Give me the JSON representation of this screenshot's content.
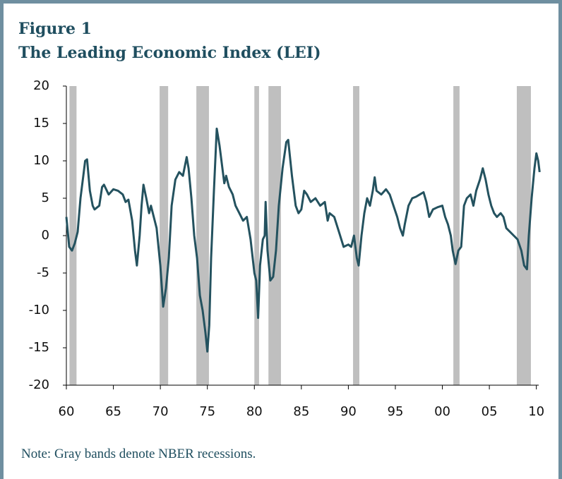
{
  "chart_data": {
    "type": "line",
    "title": "Figure 1",
    "subtitle": "The Leading Economic Index (LEI)",
    "note": "Note: Gray bands denote NBER recessions.",
    "x": [
      1960.0,
      1960.3,
      1960.6,
      1960.9,
      1961.2,
      1961.5,
      1961.8,
      1962.0,
      1962.2,
      1962.5,
      1962.8,
      1963.0,
      1963.5,
      1963.8,
      1964.0,
      1964.5,
      1965.0,
      1965.5,
      1966.0,
      1966.3,
      1966.6,
      1967.0,
      1967.3,
      1967.5,
      1967.8,
      1968.0,
      1968.2,
      1968.5,
      1968.8,
      1969.0,
      1969.3,
      1969.6,
      1970.0,
      1970.3,
      1970.6,
      1970.9,
      1971.2,
      1971.6,
      1972.0,
      1972.4,
      1972.8,
      1973.0,
      1973.3,
      1973.6,
      1973.9,
      1974.2,
      1974.5,
      1974.8,
      1975.0,
      1975.2,
      1975.4,
      1975.7,
      1976.0,
      1976.3,
      1976.6,
      1976.8,
      1977.0,
      1977.3,
      1977.7,
      1978.0,
      1978.4,
      1978.8,
      1979.2,
      1979.6,
      1980.0,
      1980.2,
      1980.4,
      1980.6,
      1980.9,
      1981.1,
      1981.2,
      1981.4,
      1981.7,
      1982.0,
      1982.3,
      1982.6,
      1983.0,
      1983.4,
      1983.6,
      1984.0,
      1984.4,
      1984.7,
      1985.0,
      1985.3,
      1985.6,
      1986.0,
      1986.5,
      1987.0,
      1987.5,
      1987.8,
      1988.0,
      1988.5,
      1989.0,
      1989.5,
      1990.0,
      1990.3,
      1990.6,
      1990.9,
      1991.1,
      1991.4,
      1991.7,
      1992.0,
      1992.3,
      1992.6,
      1992.8,
      1993.0,
      1993.5,
      1994.0,
      1994.4,
      1994.8,
      1995.2,
      1995.5,
      1995.8,
      1996.0,
      1996.4,
      1996.8,
      1997.2,
      1997.6,
      1998.0,
      1998.3,
      1998.6,
      1999.0,
      1999.5,
      2000.0,
      2000.3,
      2000.6,
      2000.9,
      2001.1,
      2001.4,
      2001.7,
      2002.0,
      2002.3,
      2002.6,
      2003.0,
      2003.3,
      2003.6,
      2004.0,
      2004.3,
      2004.6,
      2004.9,
      2005.2,
      2005.5,
      2005.8,
      2006.2,
      2006.5,
      2006.8,
      2007.2,
      2007.6,
      2008.0,
      2008.4,
      2008.7,
      2009.0,
      2009.2,
      2009.5,
      2009.8,
      2010.0,
      2010.2,
      2010.35
    ],
    "series": [
      {
        "color": "#24525f",
        "values": [
          2.5,
          -1.5,
          -2,
          -1,
          0.5,
          5,
          8,
          10,
          10.2,
          6,
          4,
          3.5,
          4,
          6.5,
          6.8,
          5.5,
          6.2,
          6,
          5.5,
          4.5,
          4.8,
          2,
          -2,
          -4,
          0,
          4,
          6.8,
          5,
          3,
          4,
          2.5,
          1,
          -4,
          -9.5,
          -7,
          -3,
          4,
          7.5,
          8.5,
          8,
          10.5,
          9,
          5,
          0,
          -3,
          -8,
          -10,
          -13,
          -15.5,
          -12,
          -3,
          6,
          14.3,
          12,
          9,
          7,
          8,
          6.5,
          5.5,
          4,
          3,
          2,
          2.5,
          -0.5,
          -5,
          -6,
          -11,
          -4,
          -0.5,
          0,
          4.5,
          -2,
          -6,
          -5.5,
          -2,
          4,
          9,
          12.5,
          12.8,
          8,
          4,
          3,
          3.5,
          6,
          5.5,
          4.5,
          5,
          4,
          4.5,
          2,
          3,
          2.5,
          0.5,
          -1.5,
          -1.2,
          -1.5,
          0,
          -3,
          -4,
          0,
          3,
          5,
          4,
          6,
          7.8,
          6,
          5.5,
          6.2,
          5.5,
          4,
          2.5,
          1,
          0,
          1.5,
          4,
          5,
          5.2,
          5.5,
          5.8,
          4.5,
          2.5,
          3.5,
          3.8,
          4,
          2.5,
          1.5,
          0,
          -2,
          -3.8,
          -2,
          -1.5,
          4,
          5,
          5.5,
          4,
          6,
          7.5,
          9,
          7.5,
          5.5,
          4,
          3,
          2.5,
          3,
          2.5,
          1,
          0.5,
          0,
          -0.5,
          -2,
          -4,
          -4.5,
          0,
          5,
          9,
          11,
          10,
          8.5
        ]
      }
    ],
    "recessions": [
      [
        1960.33,
        1961.08
      ],
      [
        1969.92,
        1970.83
      ],
      [
        1973.83,
        1975.17
      ],
      [
        1980.0,
        1980.5
      ],
      [
        1981.5,
        1982.83
      ],
      [
        1990.5,
        1991.17
      ],
      [
        2001.17,
        2001.83
      ],
      [
        2007.92,
        2009.42
      ]
    ],
    "recession_color": "#bfbfbf",
    "xlim": [
      1960,
      2010.25
    ],
    "xticks": [
      {
        "value": 1960,
        "label": "60"
      },
      {
        "value": 1965,
        "label": "65"
      },
      {
        "value": 1970,
        "label": "70"
      },
      {
        "value": 1975,
        "label": "75"
      },
      {
        "value": 1980,
        "label": "80"
      },
      {
        "value": 1985,
        "label": "85"
      },
      {
        "value": 1990,
        "label": "90"
      },
      {
        "value": 1995,
        "label": "95"
      },
      {
        "value": 2000,
        "label": "00"
      },
      {
        "value": 2005,
        "label": "05"
      },
      {
        "value": 2010,
        "label": "10"
      }
    ],
    "ylim": [
      -20,
      20
    ],
    "yticks": [
      -20,
      -15,
      -10,
      -5,
      0,
      5,
      10,
      15,
      20
    ]
  }
}
